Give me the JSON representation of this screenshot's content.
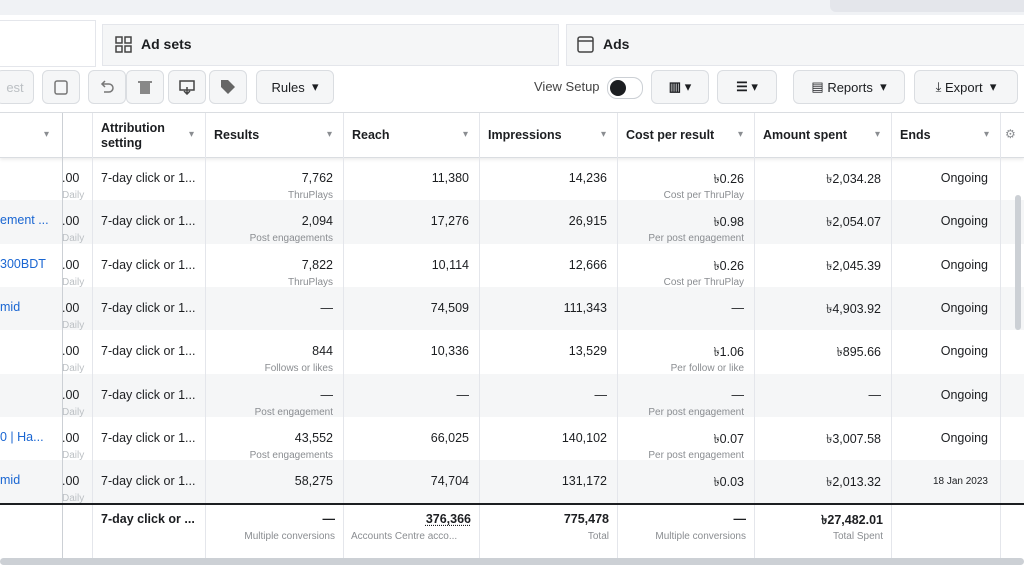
{
  "tabs": [
    "Ad sets",
    "Ads"
  ],
  "toolbar": {
    "partial_button": "est",
    "rules": "Rules",
    "view_setup": "View Setup",
    "reports": "Reports",
    "export": "Export"
  },
  "columns": [
    "Attribution setting",
    "Results",
    "Reach",
    "Impressions",
    "Cost per result",
    "Amount spent",
    "Ends"
  ],
  "rows": [
    {
      "budget": ".00",
      "period": "Daily",
      "attribution": "7-day click or 1...",
      "results": "7,762",
      "results_sub": "ThruPlays",
      "reach": "11,380",
      "impressions": "14,236",
      "cost": "৳0.26",
      "cost_sub": "Cost per ThruPlay",
      "spent": "৳2,034.28",
      "ends": "Ongoing"
    },
    {
      "name": "ement ...",
      "budget": ".00",
      "period": "Daily",
      "attribution": "7-day click or 1...",
      "results": "2,094",
      "results_sub": "Post engagements",
      "reach": "17,276",
      "impressions": "26,915",
      "cost": "৳0.98",
      "cost_sub": "Per post engagement",
      "spent": "৳2,054.07",
      "ends": "Ongoing"
    },
    {
      "name": "300BDT",
      "budget": ".00",
      "period": "Daily",
      "attribution": "7-day click or 1...",
      "results": "7,822",
      "results_sub": "ThruPlays",
      "reach": "10,114",
      "impressions": "12,666",
      "cost": "৳0.26",
      "cost_sub": "Cost per ThruPlay",
      "spent": "৳2,045.39",
      "ends": "Ongoing"
    },
    {
      "name": "mid",
      "budget": ".00",
      "period": "Daily",
      "attribution": "7-day click or 1...",
      "results": "—",
      "reach": "74,509",
      "impressions": "111,343",
      "cost": "—",
      "spent": "৳4,903.92",
      "ends": "Ongoing"
    },
    {
      "budget": ".00",
      "period": "Daily",
      "attribution": "7-day click or 1...",
      "results": "844",
      "results_sub": "Follows or likes",
      "reach": "10,336",
      "impressions": "13,529",
      "cost": "৳1.06",
      "cost_sub": "Per follow or like",
      "spent": "৳895.66",
      "ends": "Ongoing"
    },
    {
      "budget": ".00",
      "period": "Daily",
      "attribution": "7-day click or 1...",
      "results": "—",
      "results_sub": "Post engagement",
      "reach": "—",
      "impressions": "—",
      "cost": "—",
      "cost_sub": "Per post engagement",
      "spent": "—",
      "ends": "Ongoing"
    },
    {
      "name": "0 | Ha...",
      "budget": ".00",
      "period": "Daily",
      "attribution": "7-day click or 1...",
      "results": "43,552",
      "results_sub": "Post engagements",
      "reach": "66,025",
      "impressions": "140,102",
      "cost": "৳0.07",
      "cost_sub": "Per post engagement",
      "spent": "৳3,007.58",
      "ends": "Ongoing"
    },
    {
      "name": "mid",
      "budget": ".00",
      "period": "Daily",
      "attribution": "7-day click or 1...",
      "results": "58,275",
      "reach": "74,704",
      "impressions": "131,172",
      "cost": "৳0.03",
      "spent": "৳2,013.32",
      "ends": "18 Jan 2023"
    }
  ],
  "totals": {
    "attribution": "7-day click or ...",
    "results": "—",
    "results_sub": "Multiple conversions",
    "reach": "376,366",
    "reach_sub": "Accounts Centre acco...",
    "impressions": "775,478",
    "impressions_sub": "Total",
    "cost": "—",
    "cost_sub": "Multiple conversions",
    "spent": "৳27,482.01",
    "spent_sub": "Total Spent"
  }
}
